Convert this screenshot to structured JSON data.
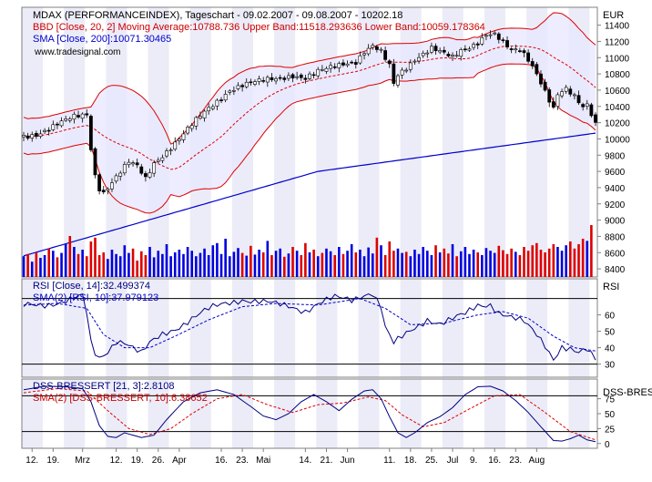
{
  "chart_data": {
    "type": "line",
    "main": {
      "title": "MDAX (PERFORMANCEINDEX), Tageschart - 09.02.2007 - 09.08.2007 - 10202.18",
      "bbd_legend": "BBD [Close, 20, 2] Moving Average:10788.736 Upper Band:11518.293636 Lower Band:10059.178364",
      "sma_legend": "SMA [Close, 200]:10071.30465",
      "source": "www.tradesignal.com",
      "currency": "EUR",
      "y_ticks": [
        11400,
        11200,
        11000,
        10800,
        10600,
        10400,
        10200,
        10000,
        9800,
        9600,
        9400,
        9200,
        9000,
        8800,
        8600,
        8400
      ],
      "ylim": [
        8300,
        11620
      ],
      "close_anchors": [
        [
          0,
          10020
        ],
        [
          3,
          10060
        ],
        [
          8,
          10190
        ],
        [
          12,
          10260
        ],
        [
          15,
          10290
        ],
        [
          16,
          9880
        ],
        [
          17,
          9550
        ],
        [
          18,
          9400
        ],
        [
          19,
          9350
        ],
        [
          21,
          9480
        ],
        [
          23,
          9600
        ],
        [
          25,
          9710
        ],
        [
          27,
          9650
        ],
        [
          29,
          9500
        ],
        [
          31,
          9700
        ],
        [
          33,
          9800
        ],
        [
          36,
          9960
        ],
        [
          40,
          10170
        ],
        [
          43,
          10320
        ],
        [
          46,
          10460
        ],
        [
          49,
          10610
        ],
        [
          52,
          10670
        ],
        [
          56,
          10700
        ],
        [
          60,
          10740
        ],
        [
          64,
          10790
        ],
        [
          67,
          10750
        ],
        [
          70,
          10820
        ],
        [
          73,
          10870
        ],
        [
          76,
          10930
        ],
        [
          79,
          10960
        ],
        [
          81,
          11080
        ],
        [
          83,
          11140
        ],
        [
          85,
          11060
        ],
        [
          87,
          10890
        ],
        [
          88,
          10670
        ],
        [
          89,
          10780
        ],
        [
          91,
          10880
        ],
        [
          93,
          10990
        ],
        [
          95,
          11060
        ],
        [
          97,
          11120
        ],
        [
          100,
          11040
        ],
        [
          102,
          10990
        ],
        [
          104,
          11080
        ],
        [
          106,
          11130
        ],
        [
          108,
          11200
        ],
        [
          110,
          11300
        ],
        [
          112,
          11290
        ],
        [
          114,
          11180
        ],
        [
          116,
          11070
        ],
        [
          118,
          11090
        ],
        [
          120,
          10980
        ],
        [
          122,
          10820
        ],
        [
          124,
          10600
        ],
        [
          126,
          10380
        ],
        [
          127,
          10550
        ],
        [
          129,
          10600
        ],
        [
          131,
          10500
        ],
        [
          133,
          10380
        ],
        [
          134,
          10420
        ],
        [
          136,
          10202
        ]
      ],
      "volume_bars": [
        38,
        42,
        28,
        45,
        35,
        40,
        52,
        48,
        36,
        44,
        60,
        75,
        55,
        42,
        50,
        38,
        65,
        72,
        40,
        45,
        33,
        50,
        42,
        38,
        58,
        44,
        52,
        30,
        47,
        40,
        55,
        36,
        48,
        42,
        60,
        38,
        45,
        50,
        42,
        55,
        48,
        38,
        44,
        52,
        40,
        58,
        62,
        42,
        70,
        38,
        46,
        53,
        44,
        39,
        57,
        41,
        50,
        45,
        66,
        40,
        48,
        52,
        37,
        43,
        55,
        48,
        40,
        62,
        45,
        50,
        38,
        44,
        52,
        47,
        40,
        55,
        42,
        48,
        60,
        45,
        50,
        38,
        54,
        43,
        72,
        58,
        40,
        65,
        48,
        52,
        44,
        46,
        38,
        50,
        42,
        55,
        48,
        40,
        58,
        45,
        52,
        43,
        60,
        38,
        47,
        55,
        42,
        50,
        45,
        40,
        53,
        48,
        44,
        57,
        49,
        42,
        52,
        46,
        40,
        55,
        48,
        58,
        62,
        50,
        45,
        52,
        60,
        55,
        48,
        58,
        65,
        52,
        60,
        70,
        66,
        95
      ],
      "volume_ticks": [
        9000,
        8800,
        8600,
        8400
      ]
    },
    "rsi": {
      "legend_rsi": "RSI [Close, 14]:32.499374",
      "legend_sma": "SMA(2) [RSI, 10]:37.979123",
      "label": "RSI",
      "y_ticks": [
        60,
        50,
        40,
        30
      ],
      "ylim": [
        22,
        82
      ],
      "upper": 70,
      "lower": 30,
      "anchors": [
        [
          0,
          65
        ],
        [
          4,
          66
        ],
        [
          8,
          68
        ],
        [
          12,
          70
        ],
        [
          14,
          71
        ],
        [
          15,
          60
        ],
        [
          16,
          42
        ],
        [
          17,
          36
        ],
        [
          18,
          33
        ],
        [
          20,
          38
        ],
        [
          22,
          45
        ],
        [
          24,
          44
        ],
        [
          26,
          40
        ],
        [
          28,
          36
        ],
        [
          30,
          42
        ],
        [
          33,
          48
        ],
        [
          36,
          52
        ],
        [
          40,
          58
        ],
        [
          44,
          63
        ],
        [
          48,
          67
        ],
        [
          52,
          70
        ],
        [
          56,
          68
        ],
        [
          60,
          66
        ],
        [
          64,
          65
        ],
        [
          67,
          63
        ],
        [
          70,
          67
        ],
        [
          74,
          70
        ],
        [
          78,
          69
        ],
        [
          81,
          73
        ],
        [
          83,
          74
        ],
        [
          85,
          65
        ],
        [
          86,
          52
        ],
        [
          88,
          42
        ],
        [
          90,
          46
        ],
        [
          93,
          52
        ],
        [
          96,
          58
        ],
        [
          99,
          55
        ],
        [
          102,
          57
        ],
        [
          105,
          60
        ],
        [
          108,
          66
        ],
        [
          111,
          67
        ],
        [
          113,
          62
        ],
        [
          116,
          58
        ],
        [
          119,
          55
        ],
        [
          122,
          48
        ],
        [
          124,
          42
        ],
        [
          126,
          34
        ],
        [
          128,
          41
        ],
        [
          130,
          39
        ],
        [
          132,
          36
        ],
        [
          134,
          38
        ],
        [
          136,
          32
        ]
      ],
      "sma_anchors": [
        [
          0,
          66
        ],
        [
          8,
          67
        ],
        [
          15,
          64
        ],
        [
          19,
          48
        ],
        [
          24,
          40
        ],
        [
          30,
          40
        ],
        [
          36,
          47
        ],
        [
          44,
          57
        ],
        [
          52,
          65
        ],
        [
          60,
          67
        ],
        [
          70,
          66
        ],
        [
          80,
          70
        ],
        [
          86,
          64
        ],
        [
          92,
          54
        ],
        [
          100,
          55
        ],
        [
          108,
          60
        ],
        [
          114,
          62
        ],
        [
          120,
          58
        ],
        [
          126,
          47
        ],
        [
          131,
          40
        ],
        [
          136,
          38
        ]
      ]
    },
    "dss": {
      "legend_dss": "DSS-BRESSERT [21, 3]:2.8108",
      "legend_sma": "SMA(2) [DSS-BRESSERT, 10]:6.38652",
      "label": "DSS-BRESSI",
      "y_ticks": [
        75,
        50,
        25,
        0
      ],
      "ylim": [
        -8,
        108
      ],
      "upper": 80,
      "lower": 20,
      "anchors": [
        [
          0,
          90
        ],
        [
          5,
          96
        ],
        [
          10,
          95
        ],
        [
          14,
          92
        ],
        [
          16,
          70
        ],
        [
          18,
          30
        ],
        [
          20,
          12
        ],
        [
          22,
          10
        ],
        [
          24,
          18
        ],
        [
          26,
          14
        ],
        [
          28,
          10
        ],
        [
          31,
          14
        ],
        [
          34,
          40
        ],
        [
          38,
          70
        ],
        [
          42,
          85
        ],
        [
          46,
          90
        ],
        [
          50,
          82
        ],
        [
          54,
          62
        ],
        [
          57,
          46
        ],
        [
          60,
          40
        ],
        [
          63,
          50
        ],
        [
          66,
          70
        ],
        [
          69,
          82
        ],
        [
          72,
          70
        ],
        [
          75,
          55
        ],
        [
          78,
          74
        ],
        [
          81,
          88
        ],
        [
          83,
          90
        ],
        [
          85,
          75
        ],
        [
          87,
          45
        ],
        [
          89,
          18
        ],
        [
          91,
          10
        ],
        [
          93,
          18
        ],
        [
          96,
          35
        ],
        [
          99,
          45
        ],
        [
          102,
          60
        ],
        [
          105,
          82
        ],
        [
          108,
          95
        ],
        [
          111,
          96
        ],
        [
          114,
          88
        ],
        [
          117,
          72
        ],
        [
          120,
          52
        ],
        [
          123,
          28
        ],
        [
          126,
          5
        ],
        [
          128,
          4
        ],
        [
          130,
          8
        ],
        [
          132,
          14
        ],
        [
          134,
          6
        ],
        [
          136,
          3
        ]
      ],
      "sma_anchors": [
        [
          0,
          85
        ],
        [
          8,
          92
        ],
        [
          15,
          88
        ],
        [
          20,
          55
        ],
        [
          25,
          25
        ],
        [
          30,
          15
        ],
        [
          35,
          25
        ],
        [
          40,
          50
        ],
        [
          46,
          75
        ],
        [
          52,
          82
        ],
        [
          58,
          65
        ],
        [
          64,
          52
        ],
        [
          70,
          65
        ],
        [
          76,
          68
        ],
        [
          82,
          78
        ],
        [
          86,
          72
        ],
        [
          90,
          48
        ],
        [
          95,
          28
        ],
        [
          100,
          35
        ],
        [
          106,
          58
        ],
        [
          112,
          80
        ],
        [
          118,
          82
        ],
        [
          124,
          52
        ],
        [
          130,
          20
        ],
        [
          136,
          6
        ]
      ]
    },
    "x_axis": {
      "labels": [
        "12.",
        "19.",
        "Mrz",
        "12.",
        "19.",
        "26.",
        "Apr",
        "16.",
        "23.",
        "Mai",
        "14.",
        "21.",
        "Jun",
        "11.",
        "18.",
        "25.",
        "Jul",
        "9.",
        "16.",
        "23.",
        "Aug"
      ],
      "label_index": [
        2,
        7,
        14,
        22,
        27,
        32,
        37,
        47,
        52,
        57,
        67,
        72,
        77,
        87,
        92,
        97,
        102,
        107,
        112,
        117,
        122
      ]
    }
  }
}
